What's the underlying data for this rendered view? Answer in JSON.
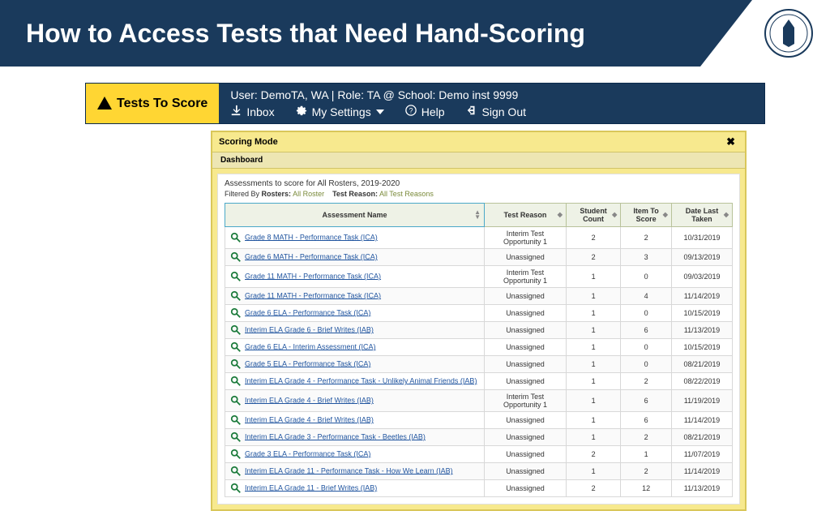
{
  "slide": {
    "title": "How to Access Tests that Need Hand-Scoring",
    "accent": "#1a3a5c"
  },
  "topbar": {
    "badge_label": "Tests To Score",
    "user_line": "User: DemoTA, WA  |  Role: TA @ School: Demo inst 9999",
    "inbox": "Inbox",
    "settings": "My Settings",
    "help": "Help",
    "signout": "Sign Out"
  },
  "window": {
    "title": "Scoring Mode",
    "dashboard": "Dashboard",
    "desc": "Assessments to score for All Rosters, 2019-2020",
    "filtered_prefix": "Filtered By",
    "rosters_label": "Rosters:",
    "rosters_value": "All Roster",
    "reason_label": "Test Reason:",
    "reason_value": "All Test Reasons",
    "columns": {
      "name": "Assessment Name",
      "reason": "Test Reason",
      "students": "Student Count",
      "items": "Item To Score",
      "date": "Date Last Taken"
    },
    "rows": [
      {
        "name": "Grade 8 MATH - Performance Task (ICA)",
        "reason": "Interim Test Opportunity 1",
        "students": 2,
        "items": 2,
        "date": "10/31/2019"
      },
      {
        "name": "Grade 6 MATH - Performance Task (ICA)",
        "reason": "Unassigned",
        "students": 2,
        "items": 3,
        "date": "09/13/2019"
      },
      {
        "name": "Grade 11 MATH - Performance Task (ICA)",
        "reason": "Interim Test Opportunity 1",
        "students": 1,
        "items": 0,
        "date": "09/03/2019"
      },
      {
        "name": "Grade 11 MATH - Performance Task (ICA)",
        "reason": "Unassigned",
        "students": 1,
        "items": 4,
        "date": "11/14/2019"
      },
      {
        "name": "Grade 6 ELA - Performance Task (ICA)",
        "reason": "Unassigned",
        "students": 1,
        "items": 0,
        "date": "10/15/2019"
      },
      {
        "name": "Interim ELA Grade 6 - Brief Writes (IAB)",
        "reason": "Unassigned",
        "students": 1,
        "items": 6,
        "date": "11/13/2019"
      },
      {
        "name": "Grade 6 ELA - Interim Assessment (ICA)",
        "reason": "Unassigned",
        "students": 1,
        "items": 0,
        "date": "10/15/2019"
      },
      {
        "name": "Grade 5 ELA - Performance Task (ICA)",
        "reason": "Unassigned",
        "students": 1,
        "items": 0,
        "date": "08/21/2019"
      },
      {
        "name": "Interim ELA Grade 4 - Performance Task - Unlikely Animal Friends (IAB)",
        "reason": "Unassigned",
        "students": 1,
        "items": 2,
        "date": "08/22/2019"
      },
      {
        "name": "Interim ELA Grade 4 - Brief Writes (IAB)",
        "reason": "Interim Test Opportunity 1",
        "students": 1,
        "items": 6,
        "date": "11/19/2019"
      },
      {
        "name": "Interim ELA Grade 4 - Brief Writes (IAB)",
        "reason": "Unassigned",
        "students": 1,
        "items": 6,
        "date": "11/14/2019"
      },
      {
        "name": "Interim ELA Grade 3 - Performance Task - Beetles (IAB)",
        "reason": "Unassigned",
        "students": 1,
        "items": 2,
        "date": "08/21/2019"
      },
      {
        "name": "Grade 3 ELA - Performance Task (ICA)",
        "reason": "Unassigned",
        "students": 2,
        "items": 1,
        "date": "11/07/2019"
      },
      {
        "name": "Interim ELA Grade 11 - Performance Task - How We Learn (IAB)",
        "reason": "Unassigned",
        "students": 1,
        "items": 2,
        "date": "11/14/2019"
      },
      {
        "name": "Interim ELA Grade 11 - Brief Writes (IAB)",
        "reason": "Unassigned",
        "students": 2,
        "items": 12,
        "date": "11/13/2019"
      }
    ]
  }
}
